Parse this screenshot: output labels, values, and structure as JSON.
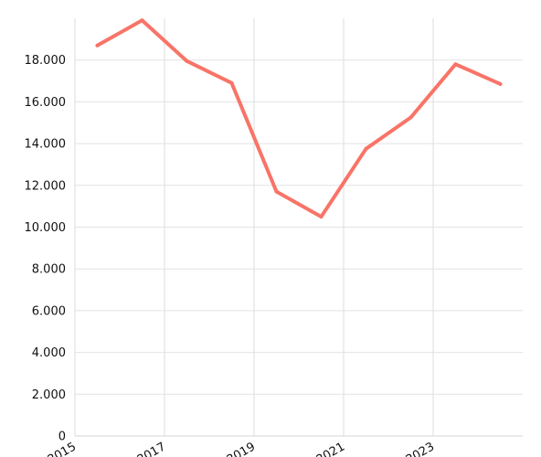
{
  "chart_data": {
    "type": "line",
    "title": "",
    "xlabel": "",
    "ylabel": "",
    "x": [
      2015.5,
      2016.5,
      2017.5,
      2018.5,
      2019.5,
      2020.5,
      2021.5,
      2022.5,
      2023.5,
      2024.5
    ],
    "series": [
      {
        "values": [
          18700,
          19900,
          17950,
          16900,
          11700,
          10500,
          13750,
          15250,
          17800,
          16850
        ]
      }
    ],
    "xlim": [
      2015,
      2025
    ],
    "ylim": [
      0,
      20000
    ],
    "y_ticks": [
      {
        "value": 0,
        "label": "0"
      },
      {
        "value": 2000,
        "label": "2.000"
      },
      {
        "value": 4000,
        "label": "4.000"
      },
      {
        "value": 6000,
        "label": "6.000"
      },
      {
        "value": 8000,
        "label": "8.000"
      },
      {
        "value": 10000,
        "label": "10.000"
      },
      {
        "value": 12000,
        "label": "12.000"
      },
      {
        "value": 14000,
        "label": "14.000"
      },
      {
        "value": 16000,
        "label": "16.000"
      },
      {
        "value": 18000,
        "label": "18.000"
      }
    ],
    "x_ticks": [
      {
        "value": 2015,
        "label": "2015"
      },
      {
        "value": 2017,
        "label": "2017"
      },
      {
        "value": 2019,
        "label": "2019"
      },
      {
        "value": 2021,
        "label": "2021"
      },
      {
        "value": 2023,
        "label": "2023"
      }
    ],
    "grid": true,
    "legend": "none",
    "line_color": "#f87467"
  }
}
